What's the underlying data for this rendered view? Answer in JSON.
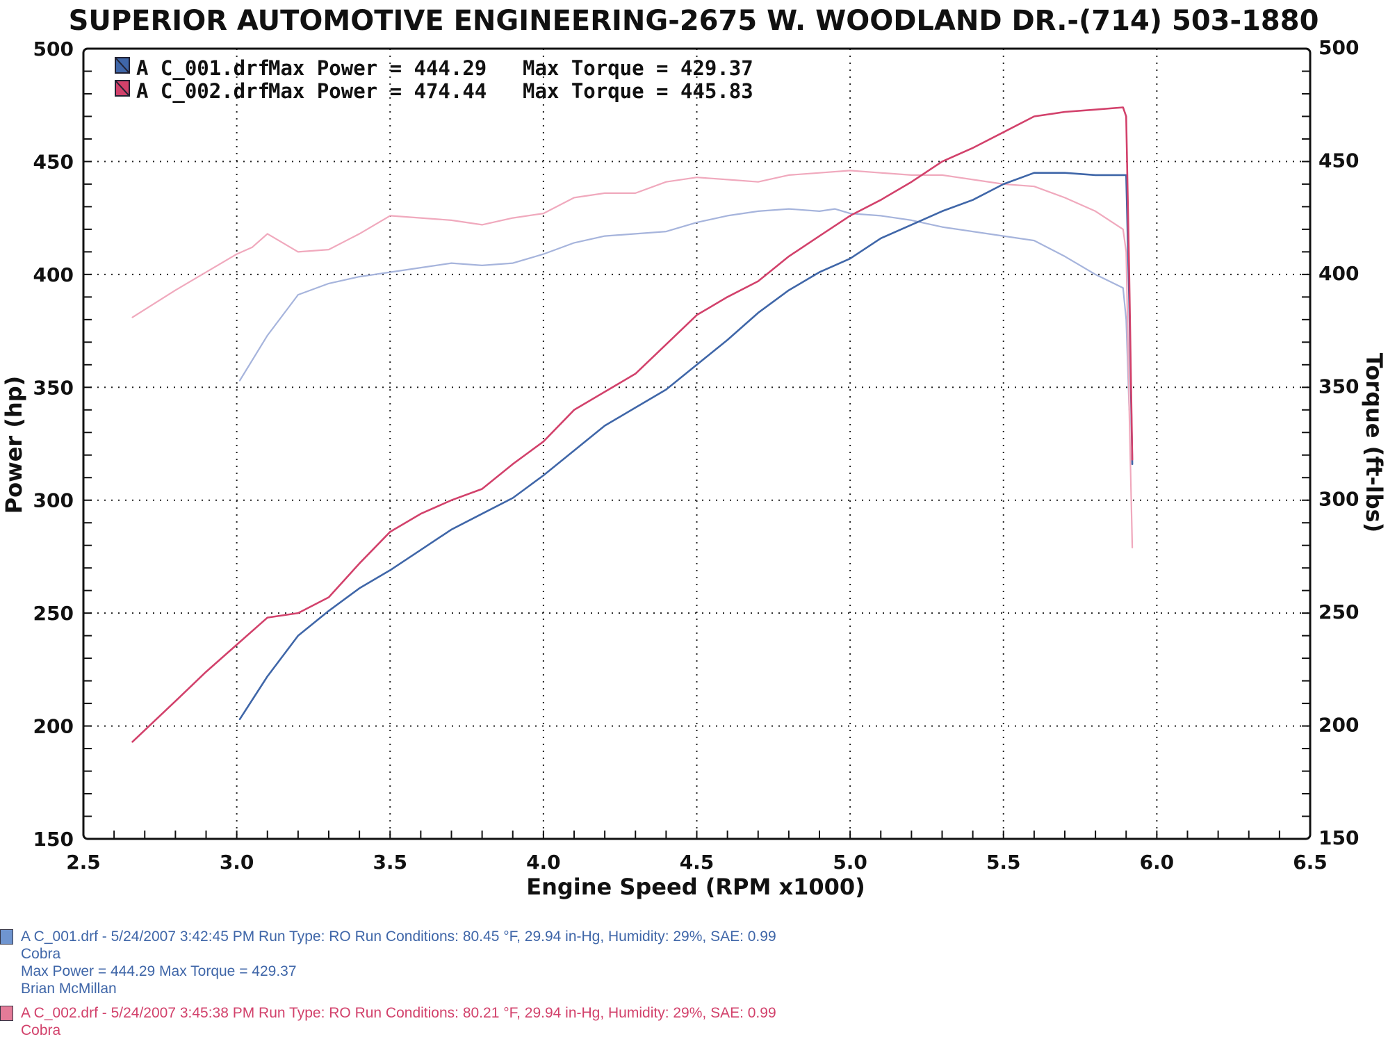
{
  "header": {
    "title": "SUPERIOR AUTOMOTIVE ENGINEERING-2675 W. WOODLAND DR.-(714) 503-1880"
  },
  "legend": [
    {
      "file": "A C_001.drf",
      "power_label": "Max Power = 444.29",
      "torque_label": "Max Torque = 429.37",
      "color": "#3f66a8"
    },
    {
      "file": "A C_002.drf",
      "power_label": "Max Power = 474.44",
      "torque_label": "Max Torque = 445.83",
      "color": "#d2416b"
    }
  ],
  "chart_data": {
    "type": "line",
    "title": "SUPERIOR AUTOMOTIVE ENGINEERING-2675 W. WOODLAND DR.-(714) 503-1880",
    "xlabel": "Engine Speed (RPM x1000)",
    "ylabel": "Power (hp)",
    "y2label": "Torque (ft-lbs)",
    "xlim": [
      2.5,
      6.5
    ],
    "ylim": [
      150,
      500
    ],
    "y2lim": [
      150,
      500
    ],
    "x_ticks": [
      "2.5",
      "3.0",
      "3.5",
      "4.0",
      "4.5",
      "5.0",
      "5.5",
      "6.0",
      "6.5"
    ],
    "y_ticks": [
      "150",
      "200",
      "250",
      "300",
      "350",
      "400",
      "450",
      "500"
    ],
    "y2_ticks": [
      "150",
      "200",
      "250",
      "300",
      "350",
      "400",
      "450",
      "500"
    ],
    "grid": true,
    "legend_position": "top-left",
    "series": [
      {
        "name": "A C_001.drf",
        "kind": "power",
        "color": "#3f66a8",
        "points": [
          [
            3.01,
            203
          ],
          [
            3.1,
            222
          ],
          [
            3.2,
            240
          ],
          [
            3.3,
            251
          ],
          [
            3.4,
            261
          ],
          [
            3.5,
            269
          ],
          [
            3.6,
            278
          ],
          [
            3.7,
            287
          ],
          [
            3.8,
            294
          ],
          [
            3.9,
            301
          ],
          [
            4.0,
            311
          ],
          [
            4.1,
            322
          ],
          [
            4.2,
            333
          ],
          [
            4.3,
            341
          ],
          [
            4.4,
            349
          ],
          [
            4.5,
            360
          ],
          [
            4.6,
            371
          ],
          [
            4.7,
            383
          ],
          [
            4.8,
            393
          ],
          [
            4.9,
            401
          ],
          [
            5.0,
            407
          ],
          [
            5.1,
            416
          ],
          [
            5.2,
            422
          ],
          [
            5.3,
            428
          ],
          [
            5.4,
            433
          ],
          [
            5.5,
            440
          ],
          [
            5.6,
            445
          ],
          [
            5.7,
            445
          ],
          [
            5.8,
            444
          ],
          [
            5.9,
            444
          ],
          [
            5.91,
            388
          ],
          [
            5.92,
            316
          ]
        ]
      },
      {
        "name": "A C_002.drf",
        "kind": "power",
        "color": "#d2416b",
        "points": [
          [
            2.66,
            193
          ],
          [
            2.8,
            211
          ],
          [
            2.9,
            224
          ],
          [
            3.0,
            236
          ],
          [
            3.1,
            248
          ],
          [
            3.2,
            250
          ],
          [
            3.3,
            257
          ],
          [
            3.4,
            272
          ],
          [
            3.5,
            286
          ],
          [
            3.6,
            294
          ],
          [
            3.7,
            300
          ],
          [
            3.8,
            305
          ],
          [
            3.9,
            316
          ],
          [
            4.0,
            326
          ],
          [
            4.1,
            340
          ],
          [
            4.2,
            348
          ],
          [
            4.3,
            356
          ],
          [
            4.4,
            369
          ],
          [
            4.5,
            382
          ],
          [
            4.6,
            390
          ],
          [
            4.7,
            397
          ],
          [
            4.8,
            408
          ],
          [
            4.9,
            417
          ],
          [
            5.0,
            426
          ],
          [
            5.1,
            433
          ],
          [
            5.2,
            441
          ],
          [
            5.3,
            450
          ],
          [
            5.4,
            456
          ],
          [
            5.5,
            463
          ],
          [
            5.6,
            470
          ],
          [
            5.7,
            472
          ],
          [
            5.8,
            473
          ],
          [
            5.89,
            474
          ],
          [
            5.9,
            470
          ],
          [
            5.91,
            400
          ],
          [
            5.92,
            318
          ]
        ]
      },
      {
        "name": "A C_001.drf",
        "kind": "torque",
        "color": "#a6b4dc",
        "points": [
          [
            3.01,
            353
          ],
          [
            3.1,
            373
          ],
          [
            3.2,
            391
          ],
          [
            3.3,
            396
          ],
          [
            3.4,
            399
          ],
          [
            3.5,
            401
          ],
          [
            3.6,
            403
          ],
          [
            3.7,
            405
          ],
          [
            3.8,
            404
          ],
          [
            3.9,
            405
          ],
          [
            4.0,
            409
          ],
          [
            4.1,
            414
          ],
          [
            4.2,
            417
          ],
          [
            4.3,
            418
          ],
          [
            4.4,
            419
          ],
          [
            4.5,
            423
          ],
          [
            4.6,
            426
          ],
          [
            4.7,
            428
          ],
          [
            4.8,
            429
          ],
          [
            4.9,
            428
          ],
          [
            4.95,
            429
          ],
          [
            5.0,
            427
          ],
          [
            5.1,
            426
          ],
          [
            5.2,
            424
          ],
          [
            5.3,
            421
          ],
          [
            5.4,
            419
          ],
          [
            5.5,
            417
          ],
          [
            5.6,
            415
          ],
          [
            5.7,
            408
          ],
          [
            5.8,
            400
          ],
          [
            5.89,
            394
          ],
          [
            5.9,
            380
          ],
          [
            5.91,
            340
          ]
        ]
      },
      {
        "name": "A C_002.drf",
        "kind": "torque",
        "color": "#f0a9bd",
        "points": [
          [
            2.66,
            381
          ],
          [
            2.8,
            393
          ],
          [
            2.9,
            401
          ],
          [
            3.0,
            409
          ],
          [
            3.05,
            412
          ],
          [
            3.1,
            418
          ],
          [
            3.2,
            410
          ],
          [
            3.3,
            411
          ],
          [
            3.4,
            418
          ],
          [
            3.5,
            426
          ],
          [
            3.6,
            425
          ],
          [
            3.7,
            424
          ],
          [
            3.8,
            422
          ],
          [
            3.9,
            425
          ],
          [
            4.0,
            427
          ],
          [
            4.1,
            434
          ],
          [
            4.2,
            436
          ],
          [
            4.3,
            436
          ],
          [
            4.4,
            441
          ],
          [
            4.5,
            443
          ],
          [
            4.6,
            442
          ],
          [
            4.7,
            441
          ],
          [
            4.8,
            444
          ],
          [
            4.9,
            445
          ],
          [
            5.0,
            446
          ],
          [
            5.1,
            445
          ],
          [
            5.2,
            444
          ],
          [
            5.3,
            444
          ],
          [
            5.4,
            442
          ],
          [
            5.5,
            440
          ],
          [
            5.6,
            439
          ],
          [
            5.7,
            434
          ],
          [
            5.8,
            428
          ],
          [
            5.89,
            420
          ],
          [
            5.9,
            410
          ],
          [
            5.91,
            340
          ],
          [
            5.92,
            279
          ]
        ]
      }
    ]
  },
  "runs": [
    {
      "color": "#3f66a8",
      "line1": "A C_001.drf - 5/24/2007 3:42:45 PM  Run Type: RO  Run Conditions: 80.45 °F, 29.94 in-Hg,  Humidity:  29%, SAE: 0.99",
      "line2": "Cobra",
      "line3": "Max Power = 444.29  Max Torque = 429.37",
      "line4": "Brian McMillan"
    },
    {
      "color": "#d2416b",
      "line1": "A C_002.drf - 5/24/2007 3:45:38 PM  Run Type: RO  Run Conditions: 80.21 °F, 29.94 in-Hg,  Humidity:  29%, SAE: 0.99",
      "line2": "Cobra"
    }
  ]
}
